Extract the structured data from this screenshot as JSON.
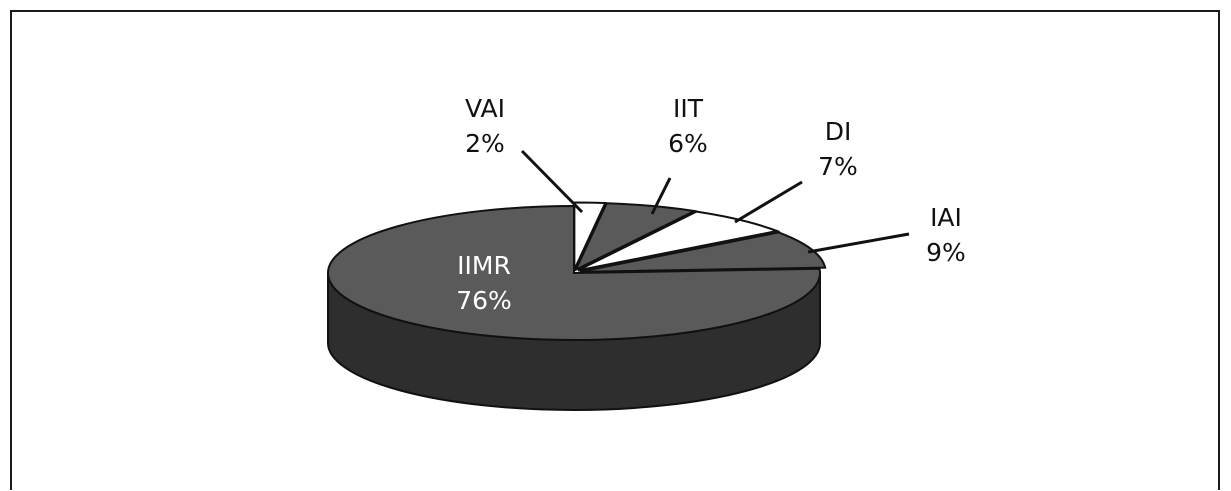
{
  "chart_data": {
    "type": "pie",
    "style": "3d-exploded",
    "categories": [
      "IIMR",
      "VAI",
      "IIT",
      "DI",
      "IAI"
    ],
    "values": [
      76,
      2,
      6,
      7,
      9
    ],
    "value_suffix": "%",
    "slice_colors": [
      "#5a5a5a",
      "#ffffff",
      "#5a5a5a",
      "#ffffff",
      "#5a5a5a"
    ],
    "side_color": "#2e2e2e",
    "labels": [
      {
        "name": "IIMR",
        "pct": "76%"
      },
      {
        "name": "VAI",
        "pct": "2%"
      },
      {
        "name": "IIT",
        "pct": "6%"
      },
      {
        "name": "DI",
        "pct": "7%"
      },
      {
        "name": "IAI",
        "pct": "9%"
      }
    ]
  }
}
